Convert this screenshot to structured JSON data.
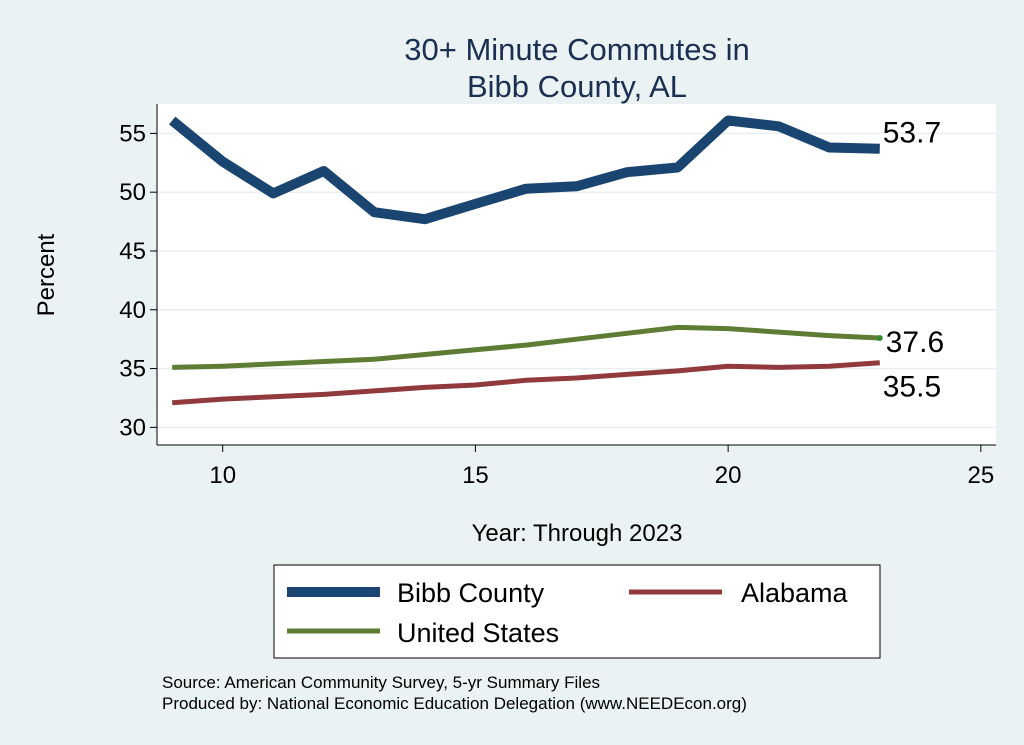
{
  "chart_data": {
    "type": "line",
    "title": [
      "30+ Minute Commutes in",
      "Bibb County, AL"
    ],
    "xlabel": "Year: Through 2023",
    "ylabel": "Percent",
    "xlim": [
      8.7,
      25.3
    ],
    "ylim": [
      28.5,
      57.5
    ],
    "xticks": [
      10,
      15,
      20,
      25
    ],
    "yticks": [
      30,
      35,
      40,
      45,
      50,
      55
    ],
    "grid": true,
    "x": [
      9,
      10,
      11,
      12,
      13,
      14,
      15,
      16,
      17,
      18,
      19,
      20,
      21,
      22,
      23
    ],
    "series": [
      {
        "name": "Bibb County",
        "color": "#1a4570",
        "values": [
          56.1,
          52.6,
          49.9,
          51.8,
          48.3,
          47.7,
          49.0,
          50.3,
          50.5,
          51.7,
          52.1,
          56.1,
          55.6,
          53.8,
          53.7
        ],
        "end_label": "53.7"
      },
      {
        "name": "Alabama",
        "color": "#903a3e",
        "values": [
          32.1,
          32.4,
          32.6,
          32.8,
          33.1,
          33.4,
          33.6,
          34.0,
          34.2,
          34.5,
          34.8,
          35.2,
          35.1,
          35.2,
          35.5
        ],
        "end_label": "35.5"
      },
      {
        "name": "United States",
        "color": "#5e7c34",
        "values": [
          35.1,
          35.2,
          35.4,
          35.6,
          35.8,
          36.2,
          36.6,
          37.0,
          37.5,
          38.0,
          38.5,
          38.4,
          38.1,
          37.8,
          37.6
        ],
        "end_label": "37.6"
      }
    ],
    "legend_position": "bottom",
    "notes": [
      "Source: American Community Survey, 5-yr Summary Files",
      "Produced by: National Economic Education Delegation (www.NEEDEcon.org)"
    ]
  }
}
